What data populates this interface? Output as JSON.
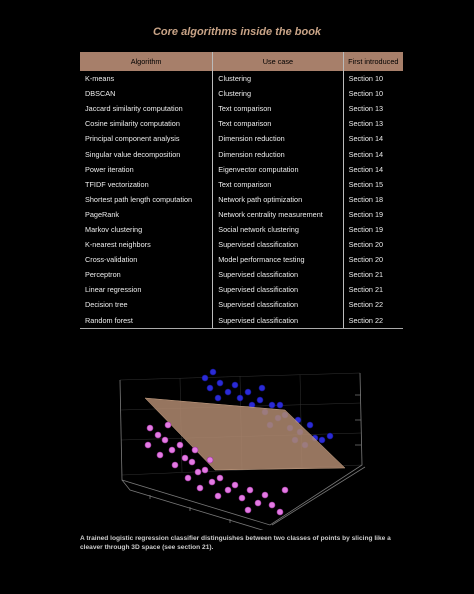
{
  "title": "Core algorithms inside the book",
  "table": {
    "columns": [
      "Algorithm",
      "Use case",
      "First introduced"
    ],
    "rows": [
      [
        "K-means",
        "Clustering",
        "Section 10"
      ],
      [
        "DBSCAN",
        "Clustering",
        "Section 10"
      ],
      [
        "Jaccard similarity computation",
        "Text comparison",
        "Section 13"
      ],
      [
        "Cosine similarity computation",
        "Text comparison",
        "Section 13"
      ],
      [
        "Principal component analysis",
        "Dimension reduction",
        "Section 14"
      ],
      [
        "Singular value decomposition",
        "Dimension reduction",
        "Section 14"
      ],
      [
        "Power iteration",
        "Eigenvector computation",
        "Section 14"
      ],
      [
        "TFIDF vectorization",
        "Text comparison",
        "Section 15"
      ],
      [
        "Shortest path length computation",
        "Network path optimization",
        "Section 18"
      ],
      [
        "PageRank",
        "Network centrality measurement",
        "Section 19"
      ],
      [
        "Markov clustering",
        "Social network clustering",
        "Section 19"
      ],
      [
        "K-nearest neighbors",
        "Supervised classification",
        "Section 20"
      ],
      [
        "Cross-validation",
        "Model performance testing",
        "Section 20"
      ],
      [
        "Perceptron",
        "Supervised classification",
        "Section 21"
      ],
      [
        "Linear regression",
        "Supervised classification",
        "Section 21"
      ],
      [
        "Decision tree",
        "Supervised classification",
        "Section 22"
      ],
      [
        "Random forest",
        "Supervised classification",
        "Section 22"
      ]
    ]
  },
  "caption": "A trained logistic regression classifier distinguishes between two classes of points by slicing like a cleaver through 3D space (see section 21)."
}
